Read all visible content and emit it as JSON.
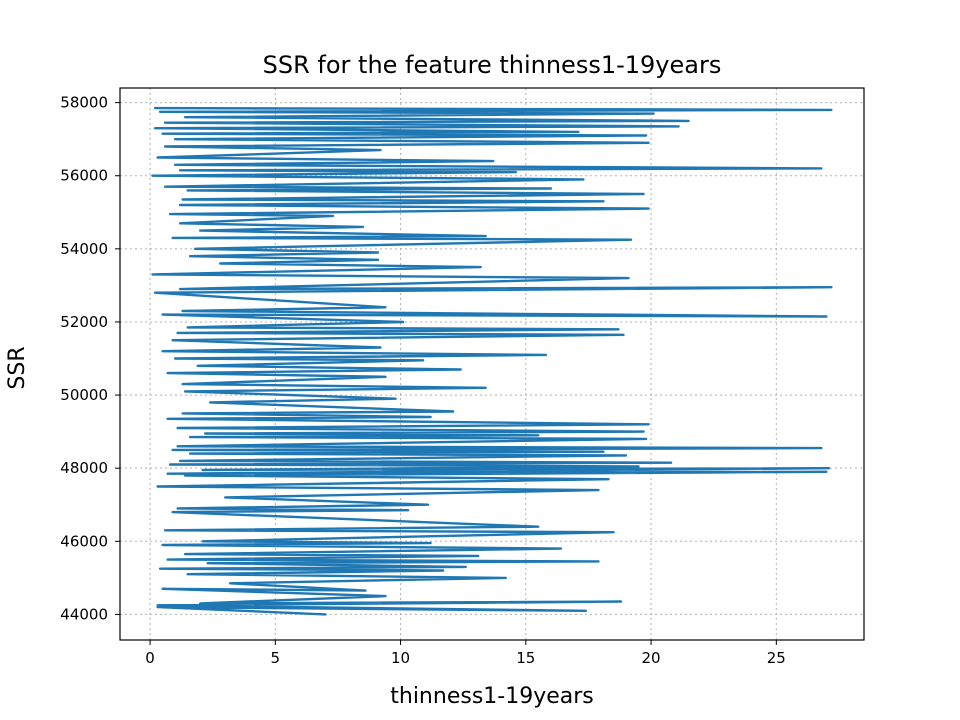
{
  "chart_data": {
    "type": "line",
    "title": "SSR for the feature thinness1-19years",
    "xlabel": "thinness1-19years",
    "ylabel": "SSR",
    "xlim": [
      -1.2,
      28.5
    ],
    "ylim": [
      43300,
      58400
    ],
    "xticks": [
      0,
      5,
      10,
      15,
      20,
      25
    ],
    "yticks": [
      44000,
      46000,
      48000,
      50000,
      52000,
      54000,
      56000,
      58000
    ],
    "grid": true,
    "color": "#1f77b4",
    "series": [
      {
        "x": [
          7.0,
          0.3,
          17.4,
          0.3,
          18.8,
          2.0,
          9.4,
          0.5,
          8.6,
          3.2,
          14.2,
          1.5,
          11.7,
          0.4,
          12.6,
          2.3,
          17.9,
          0.7,
          13.1,
          1.4,
          16.4,
          0.5,
          11.2,
          2.1,
          18.5,
          0.6,
          15.5,
          0.9,
          10.3,
          1.1,
          11.1,
          3.0,
          17.9,
          0.3,
          18.3,
          1.4,
          27.0,
          0.7,
          27.1,
          2.1,
          19.5,
          0.8,
          20.8,
          1.2,
          19.0,
          1.6,
          18.1,
          0.9,
          26.8,
          1.1,
          19.8,
          1.6,
          15.5,
          2.2,
          19.7,
          1.1,
          19.9,
          0.7,
          11.2,
          1.3,
          12.1,
          2.4,
          9.8,
          1.4,
          13.4,
          1.3,
          9.4,
          0.7,
          12.4,
          1.9,
          10.9,
          1.0,
          15.8,
          0.5,
          9.2,
          0.9,
          18.9,
          1.1,
          18.7,
          1.5,
          10.1,
          0.5,
          27.0,
          1.3,
          9.4,
          0.2,
          27.2,
          1.2,
          19.1,
          0.1,
          13.2,
          2.8,
          9.1,
          1.6,
          9.1,
          1.8,
          19.2,
          0.9,
          13.4,
          2.0,
          8.5,
          1.2,
          7.3,
          0.8,
          19.9,
          1.2,
          18.1,
          1.3,
          19.7,
          1.5,
          16.0,
          0.6,
          17.3,
          0.1,
          14.6,
          1.2,
          26.8,
          1.0,
          13.7,
          0.3,
          9.2,
          0.6,
          19.9,
          1.0,
          19.8,
          0.5,
          17.1,
          0.2,
          21.1,
          0.6,
          21.5,
          1.4,
          20.1,
          0.4,
          27.2,
          0.2
        ],
        "y": [
          44000,
          44200,
          44100,
          44250,
          44350,
          44300,
          44500,
          44700,
          44650,
          44850,
          45000,
          45100,
          45200,
          45250,
          45300,
          45400,
          45450,
          45500,
          45600,
          45650,
          45800,
          45900,
          45950,
          46000,
          46250,
          46300,
          46400,
          46800,
          46850,
          46900,
          47000,
          47200,
          47400,
          47500,
          47700,
          47800,
          47900,
          47850,
          48000,
          47950,
          48050,
          48100,
          48150,
          48200,
          48350,
          48400,
          48450,
          48500,
          48550,
          48600,
          48800,
          48850,
          48900,
          48950,
          49000,
          49100,
          49200,
          49350,
          49400,
          49500,
          49550,
          49800,
          49900,
          50100,
          50200,
          50300,
          50500,
          50600,
          50700,
          50800,
          50950,
          51000,
          51100,
          51200,
          51300,
          51500,
          51650,
          51700,
          51800,
          51850,
          52000,
          52200,
          52150,
          52300,
          52400,
          52800,
          52950,
          52900,
          53200,
          53300,
          53500,
          53600,
          53700,
          53800,
          53900,
          54000,
          54250,
          54300,
          54350,
          54500,
          54600,
          54700,
          54900,
          54950,
          55100,
          55200,
          55300,
          55350,
          55500,
          55600,
          55650,
          55700,
          55900,
          56000,
          56100,
          56150,
          56200,
          56300,
          56400,
          56500,
          56700,
          56800,
          56900,
          57000,
          57100,
          57150,
          57200,
          57300,
          57350,
          57450,
          57500,
          57600,
          57700,
          57750,
          57800,
          57850
        ]
      }
    ]
  }
}
